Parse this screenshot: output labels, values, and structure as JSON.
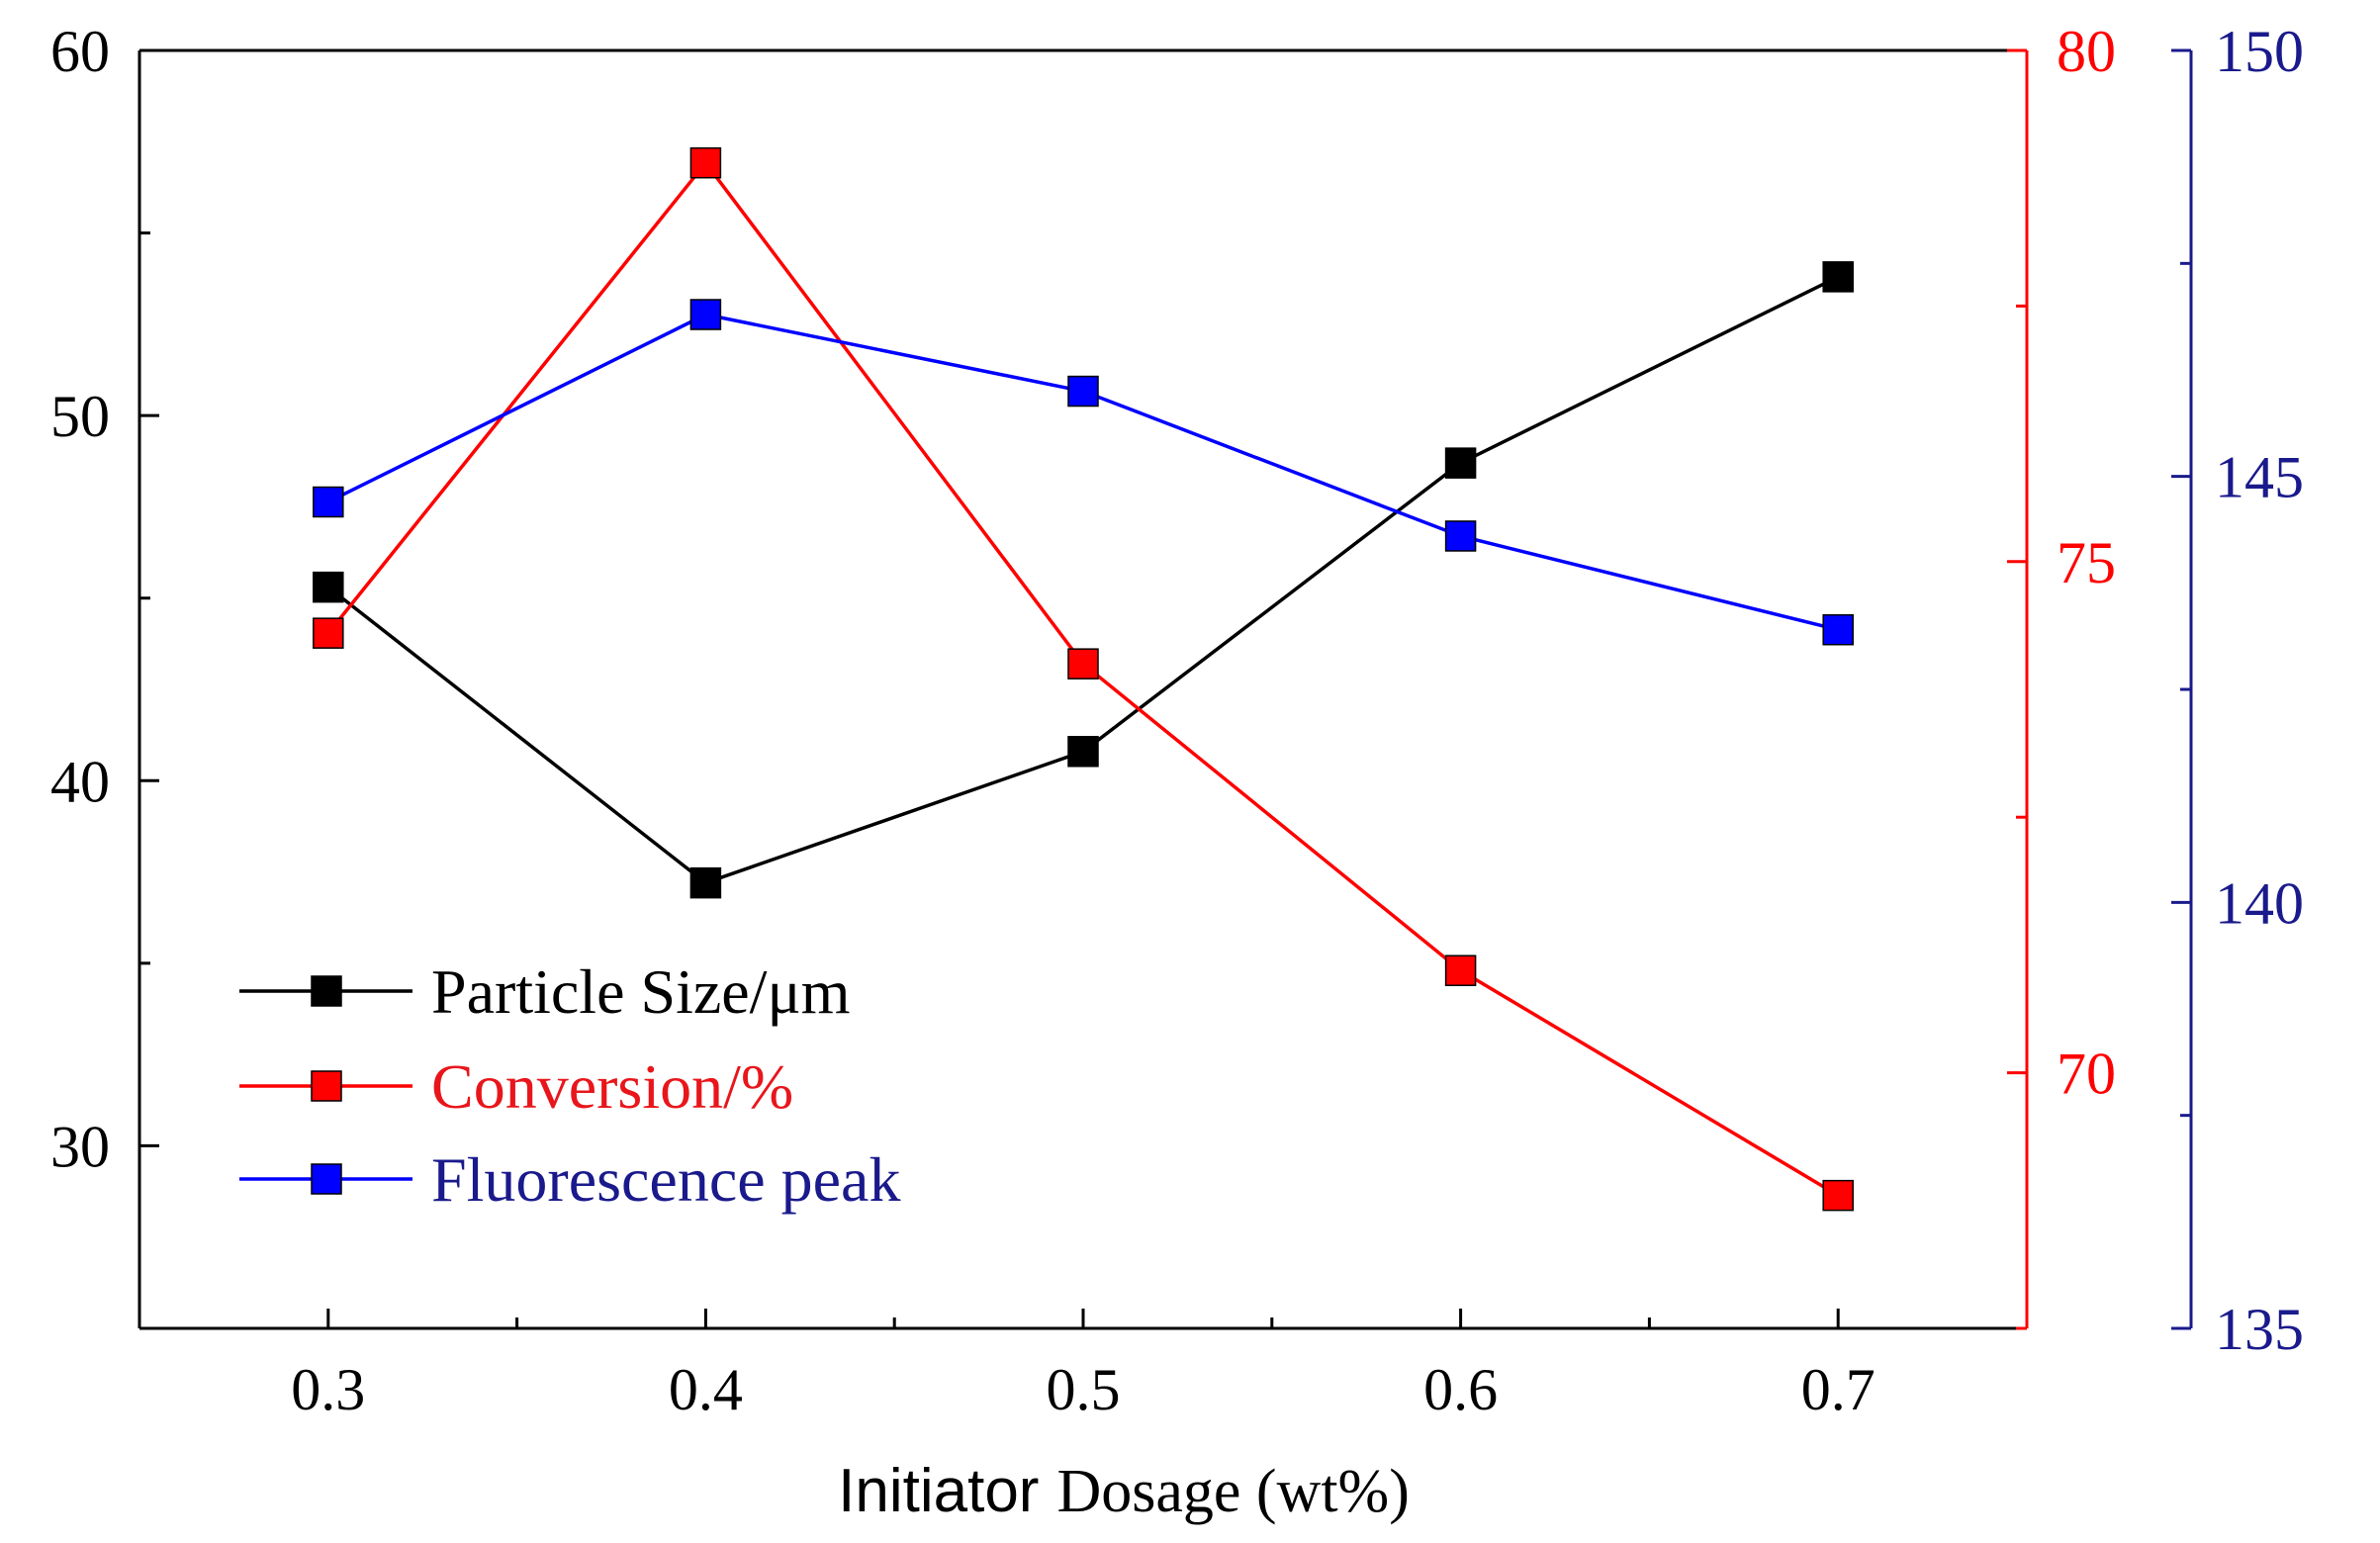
{
  "chart_data": {
    "type": "line",
    "x_values": [
      0.3,
      0.4,
      0.5,
      0.6,
      0.7
    ],
    "x_tick_labels": [
      "0.3",
      "0.4",
      "0.5",
      "0.6",
      "0.7"
    ],
    "xlim": [
      0.25,
      0.75
    ],
    "xlabel_part1": "Initiator",
    "xlabel_part2": "Dosage (wt%)",
    "series": [
      {
        "key": "size",
        "name": "Particle Size/μm",
        "color": "#000000",
        "values": [
          45.3,
          37.2,
          40.8,
          48.7,
          53.8
        ],
        "axis": "left"
      },
      {
        "key": "conv",
        "name": "Conversion/%",
        "color": "#ff0000",
        "values": [
          74.3,
          78.9,
          74.0,
          71.0,
          68.8
        ],
        "axis": "right1"
      },
      {
        "key": "fluor",
        "name": "Fluorescence peak",
        "color": "#0000ff",
        "values": [
          144.7,
          146.9,
          146.0,
          144.3,
          143.2
        ],
        "axis": "right2"
      }
    ],
    "axes": {
      "left": {
        "ylim": [
          25,
          60
        ],
        "ticks": [
          30,
          40,
          50,
          60
        ],
        "tick_labels": [
          "30",
          "40",
          "50",
          "60"
        ],
        "color": "#000000"
      },
      "right1": {
        "ylim": [
          67.5,
          80
        ],
        "ticks": [
          70,
          75,
          80
        ],
        "tick_labels": [
          "70",
          "75",
          "80"
        ],
        "color": "#ff0000"
      },
      "right2": {
        "ylim": [
          135,
          150
        ],
        "ticks": [
          135,
          140,
          145,
          150
        ],
        "tick_labels": [
          "135",
          "140",
          "145",
          "150"
        ],
        "color": "#1a1a8c"
      }
    },
    "legend_position": "bottom-left",
    "legend_text_colors": [
      "#000000",
      "#e8161b",
      "#1a1a8c"
    ]
  }
}
